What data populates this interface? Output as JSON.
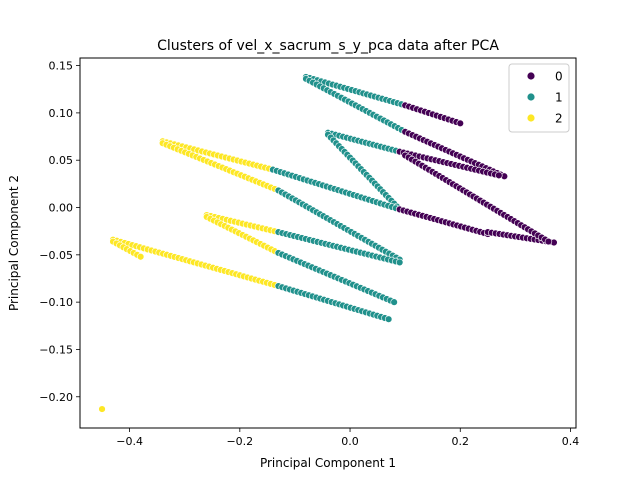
{
  "chart_data": {
    "type": "scatter",
    "title": "Clusters of vel_x_sacrum_s_y_pca data after PCA",
    "xlabel": "Principal Component 1",
    "ylabel": "Principal Component 2",
    "xlim": [
      -0.49,
      0.41
    ],
    "ylim": [
      -0.233,
      0.158
    ],
    "xticks": [
      -0.4,
      -0.2,
      0.0,
      0.2,
      0.4
    ],
    "xtick_labels": [
      "−0.4",
      "−0.2",
      "0.0",
      "0.2",
      "0.4"
    ],
    "yticks": [
      0.15,
      0.1,
      0.05,
      0.0,
      -0.05,
      -0.1,
      -0.15,
      -0.2
    ],
    "ytick_labels": [
      "0.15",
      "0.10",
      "0.05",
      "0.00",
      "−0.05",
      "−0.10",
      "−0.15",
      "−0.20"
    ],
    "grid": false,
    "legend_position": "top-right",
    "legend_entries": [
      "0",
      "1",
      "2"
    ],
    "colors": {
      "0": "#440154",
      "1": "#21918c",
      "2": "#fde725"
    },
    "series": [
      {
        "name": "2",
        "segments": [
          [
            -0.34,
            0.07,
            -0.14,
            0.04
          ],
          [
            -0.34,
            0.068,
            -0.13,
            0.018
          ],
          [
            -0.26,
            -0.008,
            -0.13,
            -0.026
          ],
          [
            -0.26,
            -0.01,
            -0.13,
            -0.048
          ],
          [
            -0.43,
            -0.034,
            -0.13,
            -0.083
          ],
          [
            -0.43,
            -0.036,
            -0.38,
            -0.052
          ]
        ],
        "points": [
          [
            -0.45,
            -0.213
          ]
        ]
      },
      {
        "name": "1",
        "segments": [
          [
            -0.08,
            0.138,
            0.1,
            0.108
          ],
          [
            -0.08,
            0.136,
            0.1,
            0.08
          ],
          [
            -0.04,
            0.079,
            0.09,
            0.059
          ],
          [
            -0.04,
            0.077,
            0.09,
            -0.002
          ],
          [
            -0.14,
            0.04,
            0.09,
            -0.002
          ],
          [
            -0.13,
            0.018,
            0.09,
            -0.055
          ],
          [
            -0.13,
            -0.026,
            0.09,
            -0.058
          ],
          [
            -0.13,
            -0.048,
            0.08,
            -0.1
          ],
          [
            -0.13,
            -0.083,
            0.07,
            -0.118
          ]
        ],
        "points": []
      },
      {
        "name": "0",
        "segments": [
          [
            0.1,
            0.108,
            0.2,
            0.089
          ],
          [
            0.1,
            0.08,
            0.28,
            0.033
          ],
          [
            0.09,
            0.059,
            0.27,
            0.034
          ],
          [
            0.09,
            -0.002,
            0.25,
            -0.028
          ],
          [
            0.25,
            -0.026,
            0.37,
            -0.037
          ],
          [
            0.1,
            0.055,
            0.36,
            -0.036
          ]
        ],
        "points": []
      }
    ]
  }
}
